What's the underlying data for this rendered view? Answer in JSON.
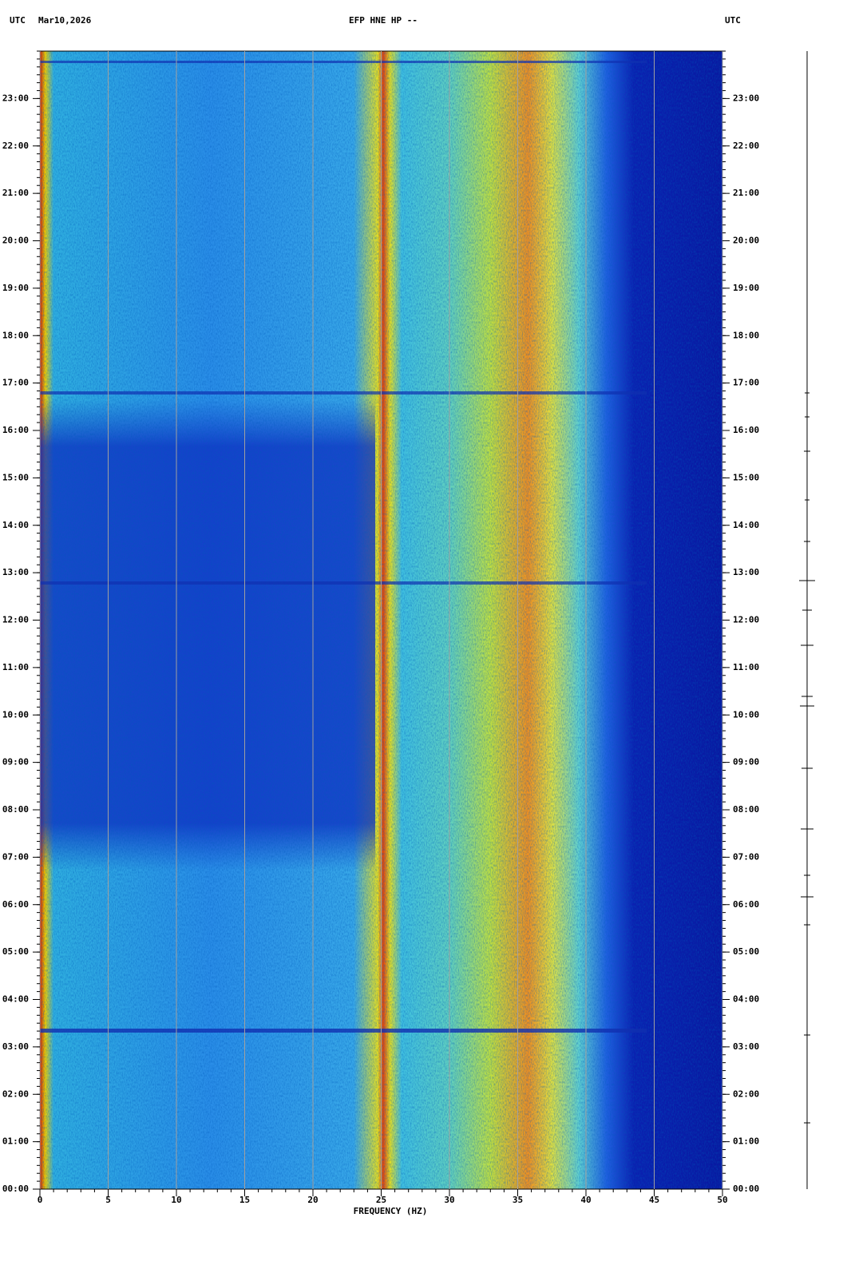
{
  "chart_data": {
    "type": "spectrogram",
    "left_time_label": "UTC",
    "date": "Mar10,2026",
    "title": "EFP HNE HP --",
    "right_time_label": "UTC",
    "x_label": "FREQUENCY (HZ)",
    "xlim": [
      0,
      50
    ],
    "xticks": [
      0,
      5,
      10,
      15,
      20,
      25,
      30,
      35,
      40,
      45,
      50
    ],
    "ylim": [
      0,
      24
    ],
    "yticks": [
      {
        "value": 0,
        "label": "00:00"
      },
      {
        "value": 1,
        "label": "01:00"
      },
      {
        "value": 2,
        "label": "02:00"
      },
      {
        "value": 3,
        "label": "03:00"
      },
      {
        "value": 4,
        "label": "04:00"
      },
      {
        "value": 5,
        "label": "05:00"
      },
      {
        "value": 6,
        "label": "06:00"
      },
      {
        "value": 7,
        "label": "07:00"
      },
      {
        "value": 8,
        "label": "08:00"
      },
      {
        "value": 9,
        "label": "09:00"
      },
      {
        "value": 10,
        "label": "10:00"
      },
      {
        "value": 11,
        "label": "11:00"
      },
      {
        "value": 12,
        "label": "12:00"
      },
      {
        "value": 13,
        "label": "13:00"
      },
      {
        "value": 14,
        "label": "14:00"
      },
      {
        "value": 15,
        "label": "15:00"
      },
      {
        "value": 16,
        "label": "16:00"
      },
      {
        "value": 17,
        "label": "17:00"
      },
      {
        "value": 18,
        "label": "18:00"
      },
      {
        "value": 19,
        "label": "19:00"
      },
      {
        "value": 20,
        "label": "20:00"
      },
      {
        "value": 21,
        "label": "21:00"
      },
      {
        "value": 22,
        "label": "22:00"
      },
      {
        "value": 23,
        "label": "23:00"
      }
    ],
    "grid": true,
    "grid_color": "#a0a0a0"
  }
}
